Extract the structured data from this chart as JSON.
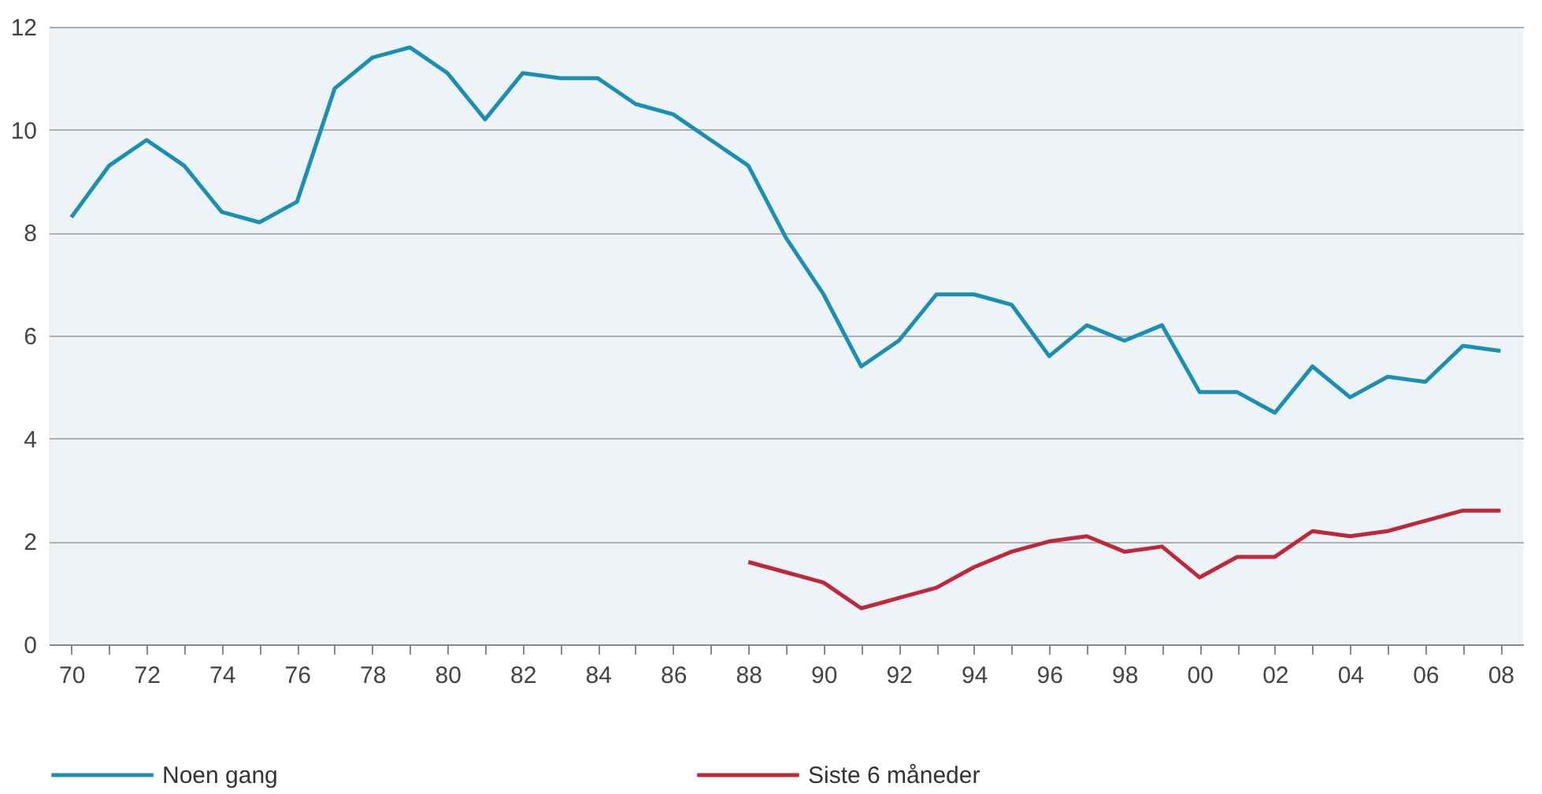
{
  "chart_data": {
    "type": "line",
    "x": [
      1970,
      1971,
      1972,
      1973,
      1974,
      1975,
      1976,
      1977,
      1978,
      1979,
      1980,
      1981,
      1982,
      1983,
      1984,
      1985,
      1986,
      1987,
      1988,
      1989,
      1990,
      1991,
      1992,
      1993,
      1994,
      1995,
      1996,
      1997,
      1998,
      1999,
      2000,
      2001,
      2002,
      2003,
      2004,
      2005,
      2006,
      2007,
      2008
    ],
    "series": [
      {
        "name": "Noen gang",
        "color": "#1a8fb5",
        "values": [
          8.3,
          9.3,
          9.8,
          9.3,
          8.4,
          8.2,
          8.6,
          10.8,
          11.4,
          11.6,
          11.1,
          10.2,
          11.1,
          11.0,
          11.0,
          10.5,
          10.3,
          9.8,
          9.3,
          7.9,
          6.8,
          5.4,
          5.9,
          6.8,
          6.8,
          6.6,
          5.6,
          6.2,
          5.9,
          6.2,
          4.9,
          4.9,
          4.5,
          5.4,
          4.8,
          5.2,
          5.1,
          5.8,
          5.7
        ]
      },
      {
        "name": "Siste 6 måneder",
        "color": "#c0283a",
        "x": [
          1988,
          1989,
          1990,
          1991,
          1992,
          1993,
          1994,
          1995,
          1996,
          1997,
          1998,
          1999,
          2000,
          2001,
          2002,
          2003,
          2004,
          2005,
          2006,
          2007,
          2008
        ],
        "values": [
          1.6,
          1.4,
          1.2,
          0.7,
          0.9,
          1.1,
          1.5,
          1.8,
          2.0,
          2.1,
          1.8,
          1.9,
          1.3,
          1.7,
          1.7,
          2.2,
          2.1,
          2.2,
          2.4,
          2.6,
          2.6
        ]
      }
    ],
    "xlim": [
      1969.4,
      2008.6
    ],
    "xticks": [
      {
        "value": 1970,
        "label": "70"
      },
      {
        "value": 1971,
        "label": null
      },
      {
        "value": 1972,
        "label": "72"
      },
      {
        "value": 1973,
        "label": null
      },
      {
        "value": 1974,
        "label": "74"
      },
      {
        "value": 1975,
        "label": null
      },
      {
        "value": 1976,
        "label": "76"
      },
      {
        "value": 1977,
        "label": null
      },
      {
        "value": 1978,
        "label": "78"
      },
      {
        "value": 1979,
        "label": null
      },
      {
        "value": 1980,
        "label": "80"
      },
      {
        "value": 1981,
        "label": null
      },
      {
        "value": 1982,
        "label": "82"
      },
      {
        "value": 1983,
        "label": null
      },
      {
        "value": 1984,
        "label": "84"
      },
      {
        "value": 1985,
        "label": null
      },
      {
        "value": 1986,
        "label": "86"
      },
      {
        "value": 1987,
        "label": null
      },
      {
        "value": 1988,
        "label": "88"
      },
      {
        "value": 1989,
        "label": null
      },
      {
        "value": 1990,
        "label": "90"
      },
      {
        "value": 1991,
        "label": null
      },
      {
        "value": 1992,
        "label": "92"
      },
      {
        "value": 1993,
        "label": null
      },
      {
        "value": 1994,
        "label": "94"
      },
      {
        "value": 1995,
        "label": null
      },
      {
        "value": 1996,
        "label": "96"
      },
      {
        "value": 1997,
        "label": null
      },
      {
        "value": 1998,
        "label": "98"
      },
      {
        "value": 1999,
        "label": null
      },
      {
        "value": 2000,
        "label": "00"
      },
      {
        "value": 2001,
        "label": null
      },
      {
        "value": 2002,
        "label": "02"
      },
      {
        "value": 2003,
        "label": null
      },
      {
        "value": 2004,
        "label": "04"
      },
      {
        "value": 2005,
        "label": null
      },
      {
        "value": 2006,
        "label": "06"
      },
      {
        "value": 2007,
        "label": null
      },
      {
        "value": 2008,
        "label": "08"
      }
    ],
    "ylim": [
      0,
      12
    ],
    "yticks": [
      0,
      2,
      4,
      6,
      8,
      10,
      12
    ],
    "grid": "y",
    "legend": "bottom",
    "line_style": "solid"
  }
}
